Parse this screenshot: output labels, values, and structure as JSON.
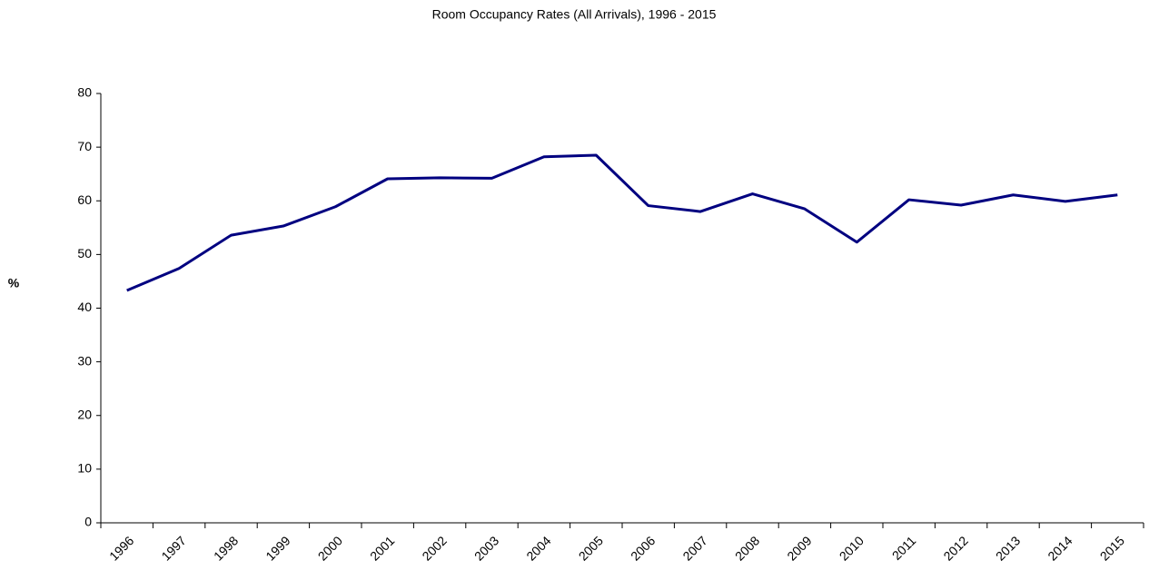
{
  "chart_data": {
    "type": "line",
    "title": "Room Occupancy Rates (All Arrivals), 1996 - 2015",
    "y_label": "%",
    "categories": [
      "1996",
      "1997",
      "1998",
      "1999",
      "2000",
      "2001",
      "2002",
      "2003",
      "2004",
      "2005",
      "2006",
      "2007",
      "2008",
      "2009",
      "2010",
      "2011",
      "2012",
      "2013",
      "2014",
      "2015"
    ],
    "series": [
      {
        "color": "#000080",
        "values": [
          43.3,
          47.4,
          53.6,
          55.3,
          58.9,
          64.1,
          64.3,
          64.2,
          68.2,
          68.5,
          59.1,
          58.0,
          61.3,
          58.5,
          52.3,
          60.2,
          59.2,
          61.1,
          59.9,
          61.1
        ]
      }
    ],
    "ylim": [
      0,
      80
    ],
    "yticks": [
      0,
      10,
      20,
      30,
      40,
      50,
      60,
      70,
      80
    ],
    "grid": false
  }
}
